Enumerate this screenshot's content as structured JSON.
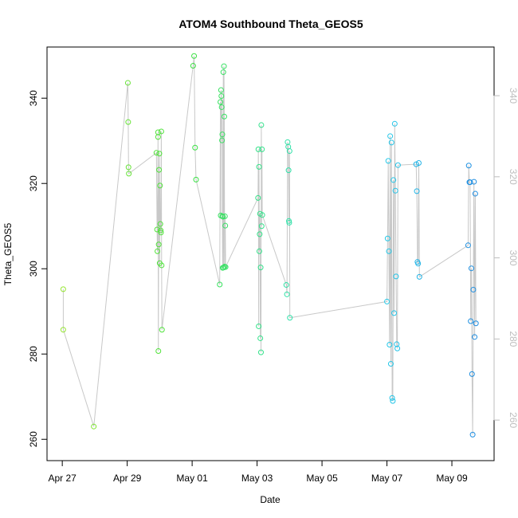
{
  "chart_data": {
    "type": "scatter",
    "title": "ATOM4 Southbound Theta_GEOS5",
    "xlabel": "Date",
    "ylabel": "Theta_GEOS5",
    "x_tick_labels": [
      "Apr 27",
      "Apr 29",
      "May 01",
      "May 03",
      "May 05",
      "May 07",
      "May 09"
    ],
    "x_tick_days": [
      0,
      2,
      4,
      6,
      8,
      10,
      12
    ],
    "xlim_days": [
      -0.47,
      13.3
    ],
    "ylim": [
      255,
      352
    ],
    "y_ticks": [
      260,
      280,
      300,
      320,
      340
    ],
    "y2_ticks": [
      260,
      280,
      300,
      320,
      340
    ],
    "y2lim": [
      250,
      352
    ],
    "grid": false,
    "point_color_scale": "green to blue by date",
    "series": [
      {
        "x": [
          0.03,
          0.03,
          0.97,
          2.02,
          2.03,
          2.04,
          2.05,
          2.9,
          2.92,
          2.93,
          2.95,
          2.95,
          2.96,
          2.97,
          2.98,
          2.99,
          3.0,
          3.01,
          3.02,
          3.03,
          3.04,
          3.05,
          3.06,
          3.07
        ],
        "y": [
          295.2,
          285.7,
          263.0,
          343.6,
          334.4,
          323.8,
          322.3,
          327.2,
          309.2,
          304.1,
          330.9,
          332.0,
          280.7,
          305.7,
          323.2,
          327.0,
          301.3,
          319.5,
          310.5,
          309.0,
          308.5,
          332.2,
          300.8,
          285.7
        ]
      },
      {
        "x": [
          4.03,
          4.06,
          4.09,
          4.12,
          4.85,
          4.87,
          4.88,
          4.89,
          4.9,
          4.91,
          4.92,
          4.93,
          4.93,
          4.94,
          4.95,
          4.96,
          4.97,
          4.98,
          4.99,
          5.0,
          5.01,
          5.02,
          5.03
        ],
        "y": [
          347.6,
          349.9,
          328.4,
          320.9,
          296.3,
          339.1,
          312.5,
          341.9,
          340.5,
          337.9,
          330.1,
          331.5,
          312.3,
          300.2,
          312.2,
          346.1,
          300.3,
          347.5,
          335.7,
          300.5,
          312.3,
          310.1,
          300.4
        ]
      },
      {
        "x": [
          6.03,
          6.04,
          6.05,
          6.06,
          6.07,
          6.08,
          6.09,
          6.1,
          6.11,
          6.12,
          6.13,
          6.14,
          6.15,
          6.16,
          6.9,
          6.92,
          6.94,
          6.96,
          6.97,
          6.98,
          6.99,
          7.0,
          7.01
        ],
        "y": [
          316.6,
          328.0,
          286.5,
          323.9,
          304.1,
          308.1,
          312.9,
          283.7,
          300.3,
          280.4,
          333.7,
          310.0,
          328.0,
          312.6,
          296.2,
          294.0,
          329.7,
          328.6,
          323.1,
          311.2,
          310.8,
          327.6,
          288.5
        ]
      },
      {
        "x": [
          10.0,
          10.02,
          10.04,
          10.06,
          10.08,
          10.1,
          10.12,
          10.14,
          10.16,
          10.18,
          10.2,
          10.22,
          10.24,
          10.26,
          10.28,
          10.3,
          10.32,
          10.34,
          10.9,
          10.92,
          10.94,
          10.96,
          10.98,
          11.0
        ],
        "y": [
          292.3,
          307.1,
          325.3,
          304.1,
          282.2,
          331.1,
          277.7,
          329.6,
          269.7,
          269.0,
          320.8,
          289.6,
          334.0,
          318.3,
          298.2,
          282.3,
          281.3,
          324.3,
          324.5,
          318.2,
          301.6,
          301.2,
          324.8,
          298.1
        ]
      },
      {
        "x": [
          12.5,
          12.52,
          12.54,
          12.56,
          12.58,
          12.6,
          12.62,
          12.64,
          12.66,
          12.68,
          12.7,
          12.72,
          12.74
        ],
        "y": [
          305.5,
          324.2,
          320.3,
          320.3,
          287.7,
          300.1,
          275.3,
          261.1,
          295.1,
          320.4,
          284.0,
          317.6,
          287.2
        ]
      }
    ]
  }
}
